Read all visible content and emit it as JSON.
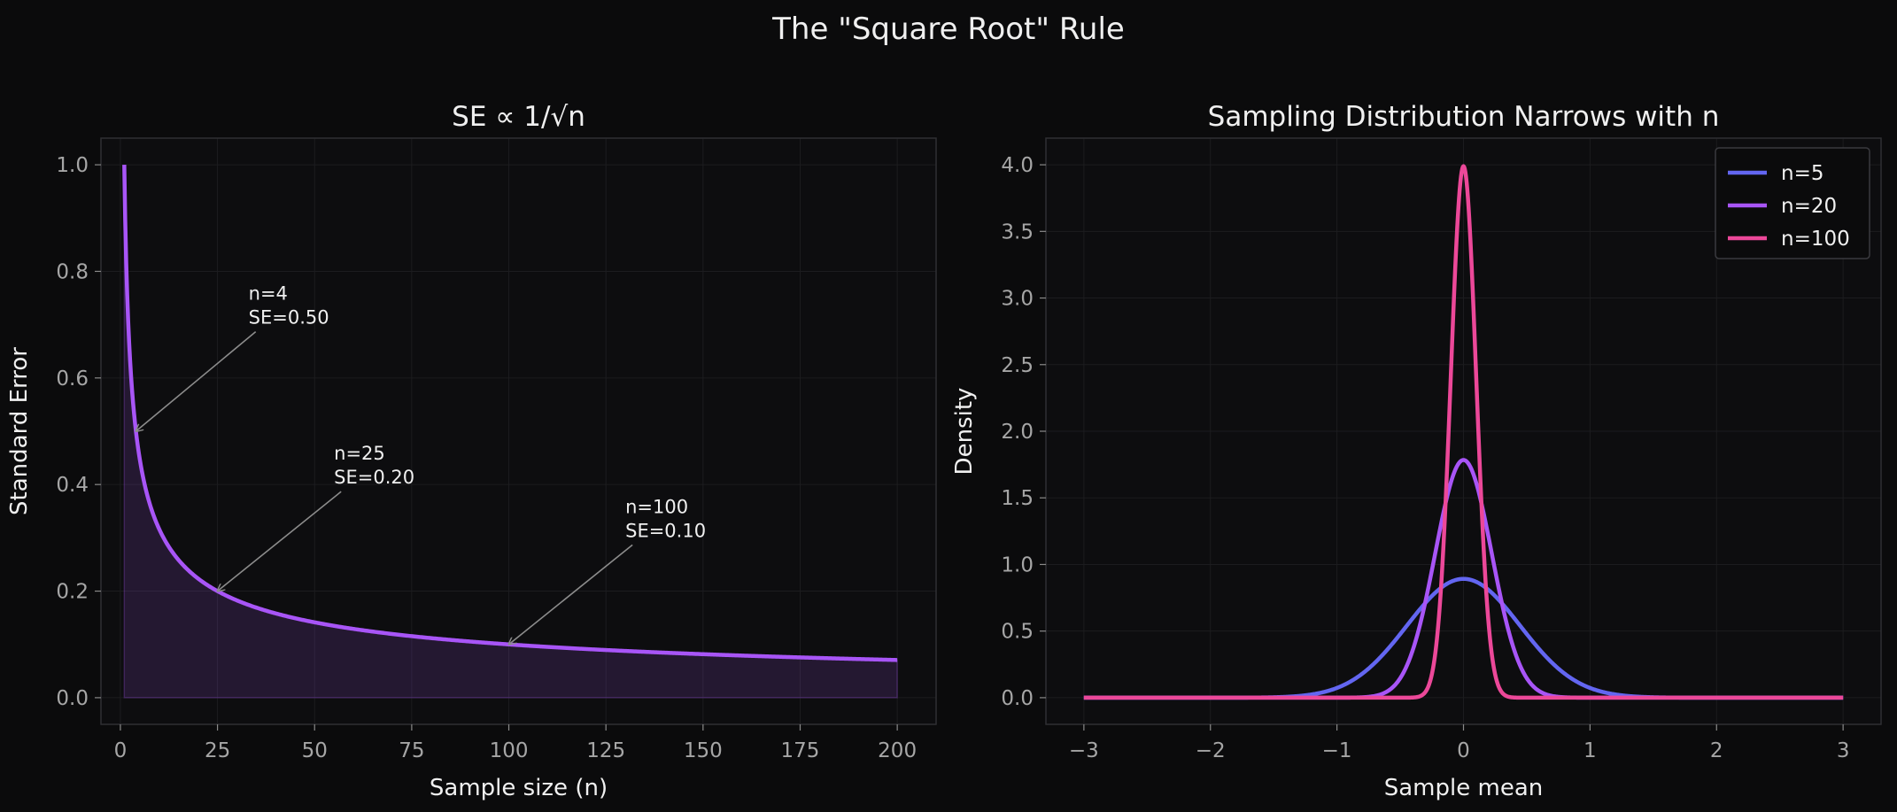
{
  "figure": {
    "suptitle": "The \"Square Root\" Rule",
    "background": "#0b0b0c"
  },
  "chart_data": [
    {
      "type": "line",
      "title": "SE ∝ 1/√n",
      "xlabel": "Sample size (n)",
      "ylabel": "Standard Error",
      "xlim": [
        -5,
        210
      ],
      "ylim": [
        -0.05,
        1.05
      ],
      "xticks": [
        0,
        25,
        50,
        75,
        100,
        125,
        150,
        175,
        200
      ],
      "yticks": [
        0.0,
        0.2,
        0.4,
        0.6,
        0.8,
        1.0
      ],
      "xtick_labels": [
        "0",
        "25",
        "50",
        "75",
        "100",
        "125",
        "150",
        "175",
        "200"
      ],
      "ytick_labels": [
        "0.0",
        "0.2",
        "0.4",
        "0.6",
        "0.8",
        "1.0"
      ],
      "grid": true,
      "series": [
        {
          "formula": "1/sqrt(n)",
          "x_range": [
            1,
            200
          ],
          "color": "#a855f7",
          "fill": true
        }
      ],
      "annotations": [
        {
          "lines": [
            "n=4",
            "SE=0.50"
          ],
          "point": [
            4,
            0.5
          ]
        },
        {
          "lines": [
            "n=25",
            "SE=0.20"
          ],
          "point": [
            25,
            0.2
          ]
        },
        {
          "lines": [
            "n=100",
            "SE=0.10"
          ],
          "point": [
            100,
            0.1
          ]
        }
      ]
    },
    {
      "type": "line",
      "title": "Sampling Distribution Narrows with n",
      "xlabel": "Sample mean",
      "ylabel": "Density",
      "xlim": [
        -3.3,
        3.3
      ],
      "ylim": [
        -0.2,
        4.2
      ],
      "xticks": [
        -3,
        -2,
        -1,
        0,
        1,
        2,
        3
      ],
      "yticks": [
        0.0,
        0.5,
        1.0,
        1.5,
        2.0,
        2.5,
        3.0,
        3.5,
        4.0
      ],
      "xtick_labels": [
        "−3",
        "−2",
        "−1",
        "0",
        "1",
        "2",
        "3"
      ],
      "ytick_labels": [
        "0.0",
        "0.5",
        "1.0",
        "1.5",
        "2.0",
        "2.5",
        "3.0",
        "3.5",
        "4.0"
      ],
      "grid": true,
      "legend_position": "top-right",
      "series": [
        {
          "name": "n=5",
          "n": 5,
          "formula": "normal pdf, mean 0, sd 1/sqrt(n)",
          "x_range": [
            -3,
            3
          ],
          "color": "#6366f1"
        },
        {
          "name": "n=20",
          "n": 20,
          "formula": "normal pdf, mean 0, sd 1/sqrt(n)",
          "x_range": [
            -3,
            3
          ],
          "color": "#a855f7"
        },
        {
          "name": "n=100",
          "n": 100,
          "formula": "normal pdf, mean 0, sd 1/sqrt(n)",
          "x_range": [
            -3,
            3
          ],
          "color": "#ec4899"
        }
      ]
    }
  ]
}
